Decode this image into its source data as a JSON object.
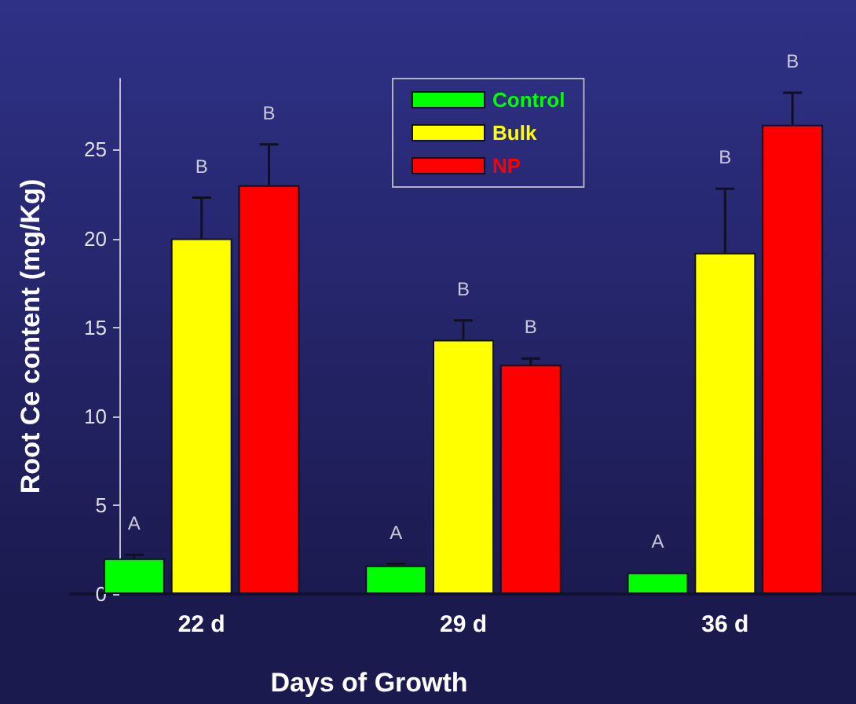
{
  "chart_data": {
    "type": "bar",
    "xlabel": "Days of Growth",
    "ylabel": "Root Ce content (mg/Kg)",
    "categories": [
      "22 d",
      "29 d",
      "36 d"
    ],
    "series": [
      {
        "name": "Control",
        "color": "#00ff00",
        "values": [
          2.0,
          1.6,
          1.2
        ],
        "errors": [
          [
            2.0,
            2.2
          ],
          [
            1.6,
            1.7
          ],
          null
        ]
      },
      {
        "name": "Bulk",
        "color": "#ffff00",
        "values": [
          20.0,
          14.3,
          19.2
        ],
        "errors": [
          [
            20.0,
            22.3
          ],
          [
            14.3,
            15.4
          ],
          [
            19.2,
            22.8
          ]
        ]
      },
      {
        "name": "NP",
        "color": "#ff0000",
        "values": [
          23.0,
          12.9,
          26.4
        ],
        "errors": [
          [
            23.0,
            25.3
          ],
          [
            12.9,
            13.25
          ],
          [
            26.4,
            28.2
          ]
        ]
      }
    ],
    "annotations": [
      "A",
      "B",
      "B",
      "A",
      "B",
      "B",
      "A",
      "B",
      "B"
    ],
    "ylim": [
      0,
      29
    ],
    "yticks": [
      0,
      5,
      10,
      15,
      20,
      25
    ],
    "grid": false,
    "legend": "top"
  }
}
